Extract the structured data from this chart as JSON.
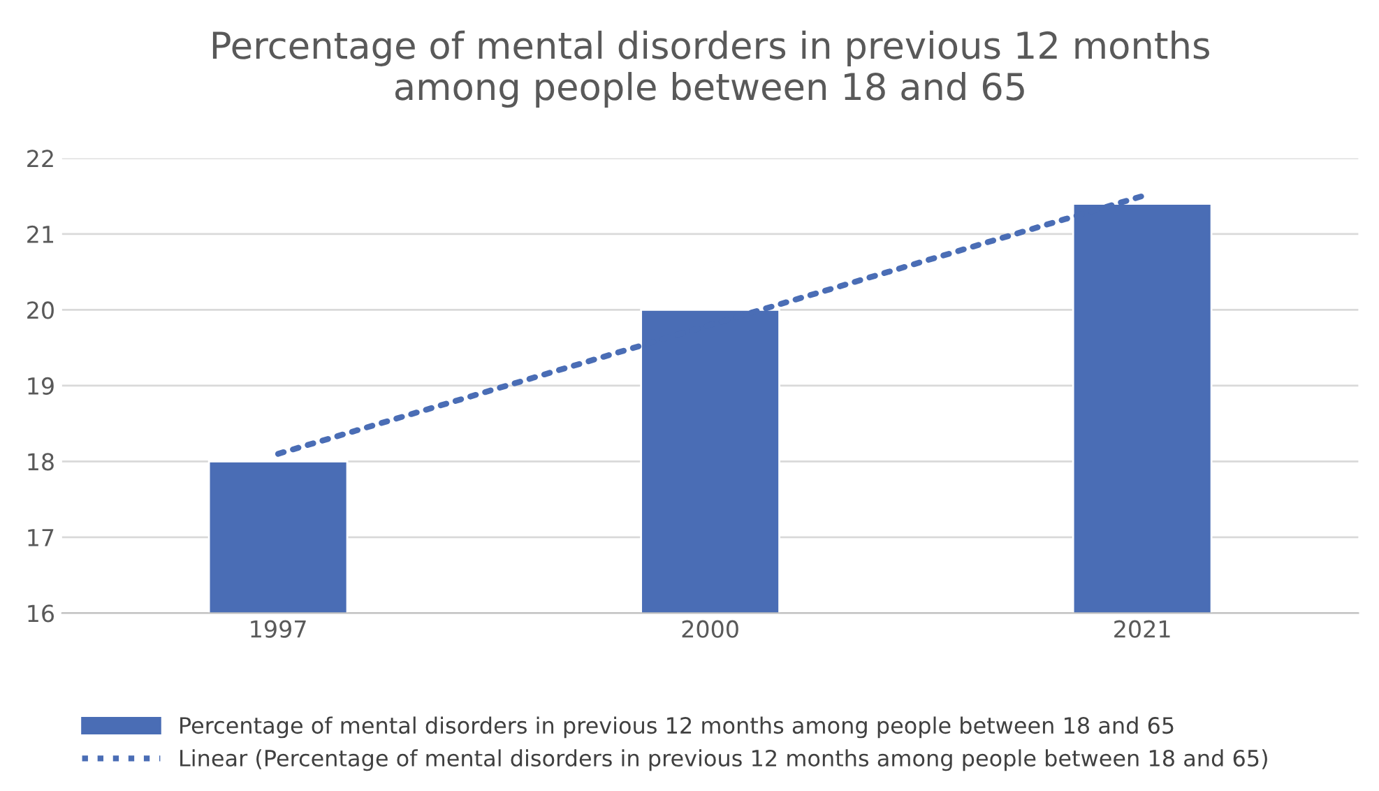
{
  "chart_data": {
    "type": "bar",
    "title": "Percentage of mental disorders in previous 12 months\namong people between 18 and 65",
    "categories": [
      "1997",
      "2000",
      "2021"
    ],
    "series": [
      {
        "name": "Percentage of mental disorders in previous 12 months among people between 18 and 65",
        "color": "#4a6db5",
        "values": [
          18,
          20,
          21.4
        ]
      },
      {
        "name": "Linear (Percentage of mental disorders in previous 12 months among people between 18 and 65)",
        "type": "line",
        "color": "#4a6db5",
        "line_style": "dotted",
        "marker": "none",
        "values": [
          18.1,
          19.8,
          21.5
        ]
      }
    ],
    "ylim": [
      16,
      22
    ],
    "yticks": [
      16,
      17,
      18,
      19,
      20,
      21,
      22
    ],
    "grid": "y",
    "legend": "bottom"
  }
}
